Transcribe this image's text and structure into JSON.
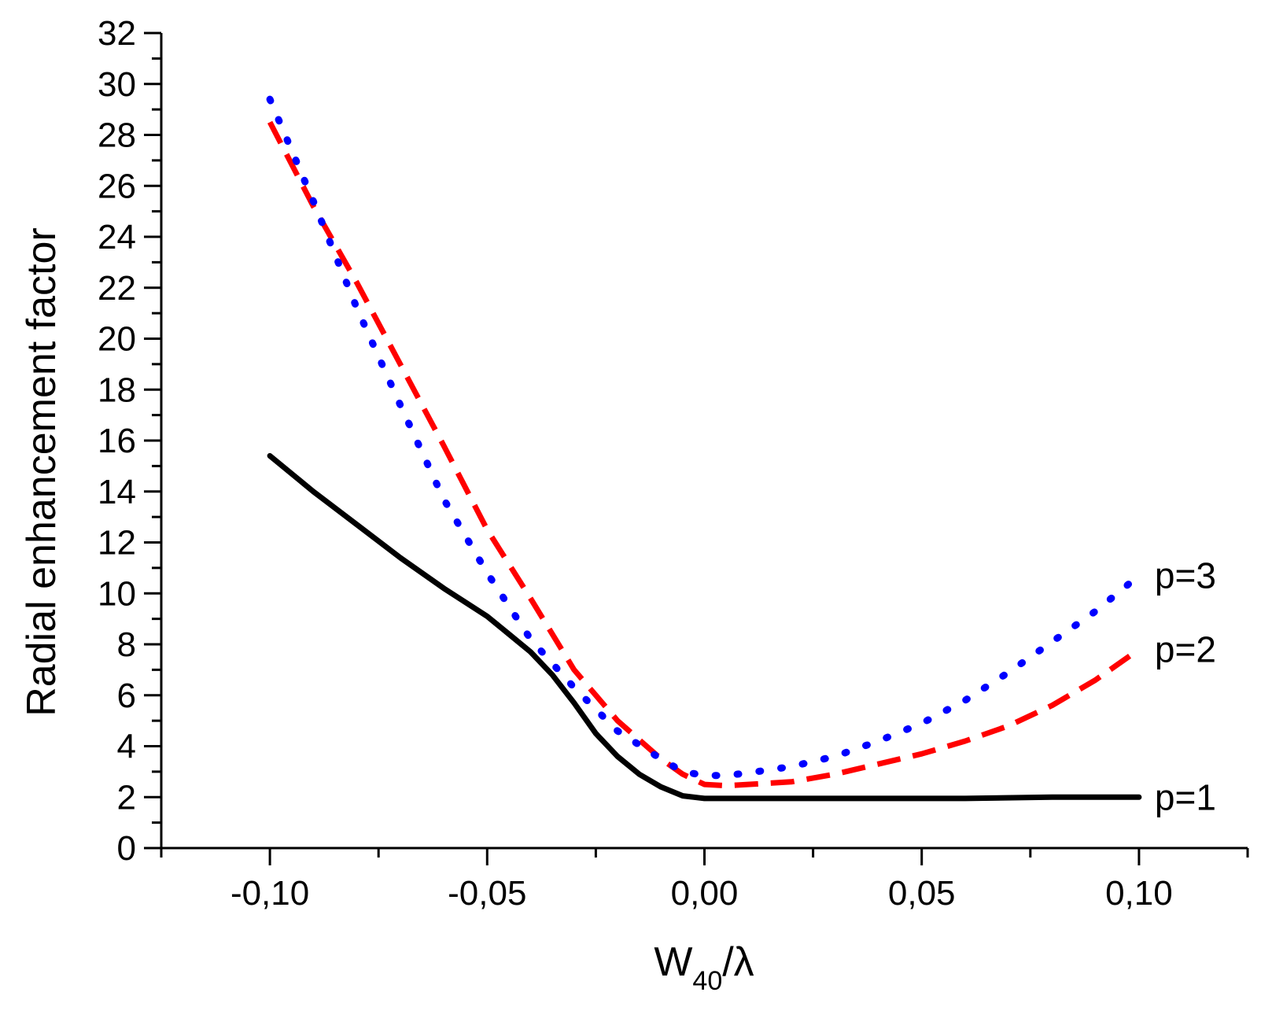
{
  "chart_data": {
    "type": "line",
    "title": "",
    "xlabel_main": "W",
    "xlabel_sub": "40",
    "xlabel_tail": "/λ",
    "ylabel": "Radial enhancement factor",
    "xlim": [
      -0.125,
      0.125
    ],
    "ylim": [
      0,
      32
    ],
    "xticks": [
      -0.1,
      -0.05,
      0.0,
      0.05,
      0.1
    ],
    "xtick_labels": [
      "-0,10",
      "-0,05",
      "0,00",
      "0,05",
      "0,10"
    ],
    "yticks": [
      0,
      2,
      4,
      6,
      8,
      10,
      12,
      14,
      16,
      18,
      20,
      22,
      24,
      26,
      28,
      30,
      32
    ],
    "ytick_labels": [
      "0",
      "2",
      "4",
      "6",
      "8",
      "10",
      "12",
      "14",
      "16",
      "18",
      "20",
      "22",
      "24",
      "26",
      "28",
      "30",
      "32"
    ],
    "grid": false,
    "series": [
      {
        "name": "p=1",
        "label": "p=1",
        "color": "#000000",
        "style": "solid",
        "x": [
          -0.1,
          -0.09,
          -0.08,
          -0.07,
          -0.06,
          -0.05,
          -0.045,
          -0.04,
          -0.035,
          -0.03,
          -0.025,
          -0.02,
          -0.015,
          -0.01,
          -0.005,
          0.0,
          0.02,
          0.04,
          0.06,
          0.08,
          0.1
        ],
        "y": [
          15.4,
          14.0,
          12.7,
          11.4,
          10.2,
          9.1,
          8.4,
          7.7,
          6.8,
          5.7,
          4.5,
          3.6,
          2.9,
          2.4,
          2.05,
          1.95,
          1.95,
          1.95,
          1.95,
          2.0,
          2.0
        ]
      },
      {
        "name": "p=2",
        "label": "p=2",
        "color": "#ff0000",
        "style": "dashed",
        "x": [
          -0.1,
          -0.09,
          -0.08,
          -0.07,
          -0.06,
          -0.05,
          -0.04,
          -0.03,
          -0.02,
          -0.01,
          -0.005,
          0.0,
          0.005,
          0.01,
          0.02,
          0.03,
          0.04,
          0.05,
          0.06,
          0.07,
          0.08,
          0.09,
          0.1
        ],
        "y": [
          28.5,
          25.2,
          22.2,
          19.0,
          15.8,
          12.5,
          9.8,
          7.0,
          5.0,
          3.5,
          2.9,
          2.5,
          2.45,
          2.5,
          2.6,
          2.9,
          3.3,
          3.7,
          4.2,
          4.8,
          5.6,
          6.6,
          7.8
        ]
      },
      {
        "name": "p=3",
        "label": "p=3",
        "color": "#0000ff",
        "style": "dotted",
        "x": [
          -0.1,
          -0.09,
          -0.08,
          -0.07,
          -0.06,
          -0.05,
          -0.04,
          -0.03,
          -0.02,
          -0.01,
          -0.005,
          0.0,
          0.005,
          0.01,
          0.02,
          0.03,
          0.04,
          0.05,
          0.06,
          0.07,
          0.08,
          0.09,
          0.1
        ],
        "y": [
          29.4,
          25.4,
          21.2,
          17.4,
          13.7,
          10.8,
          8.2,
          6.3,
          4.6,
          3.5,
          3.0,
          2.85,
          2.85,
          2.95,
          3.2,
          3.6,
          4.2,
          4.9,
          5.8,
          6.9,
          8.1,
          9.3,
          10.7
        ]
      }
    ]
  }
}
